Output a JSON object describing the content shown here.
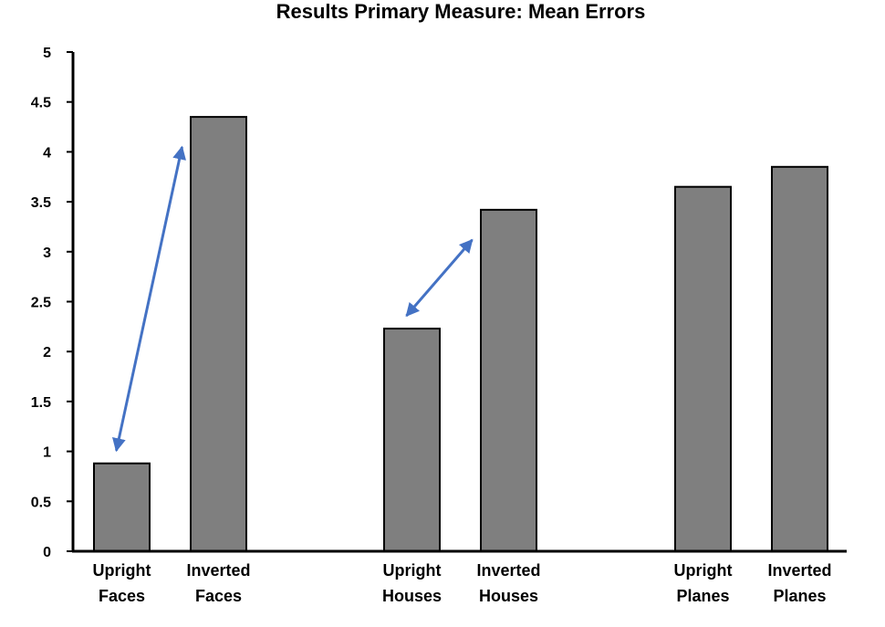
{
  "chart_data": {
    "type": "bar",
    "title": "Results Primary Measure: Mean Errors",
    "xlabel": "",
    "ylabel": "",
    "ylim": [
      0,
      5
    ],
    "yticks": [
      "0",
      "0.5",
      "1",
      "1.5",
      "2",
      "2.5",
      "3",
      "3.5",
      "4",
      "4.5",
      "5"
    ],
    "categories": [
      [
        "Upright",
        "Faces"
      ],
      [
        "Inverted",
        "Faces"
      ],
      [
        "Upright",
        "Houses"
      ],
      [
        "Inverted",
        "Houses"
      ],
      [
        "Upright",
        "Planes"
      ],
      [
        "Inverted",
        "Planes"
      ]
    ],
    "values": [
      0.88,
      4.35,
      2.23,
      3.42,
      3.65,
      3.85
    ],
    "grid": false,
    "legend": "none",
    "bar_color": "#7f7f7f",
    "annotations": [
      {
        "type": "double-arrow",
        "from_category": 0,
        "to_category": 1,
        "color": "#4472c4"
      },
      {
        "type": "double-arrow",
        "from_category": 2,
        "to_category": 3,
        "color": "#4472c4"
      }
    ]
  }
}
